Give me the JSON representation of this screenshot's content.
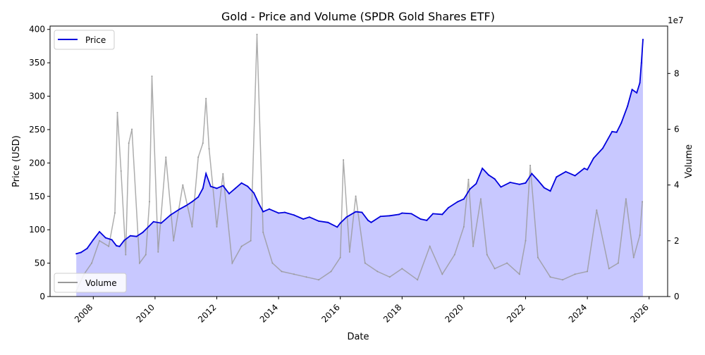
{
  "chart_data": {
    "type": "line",
    "title": "Gold - Price and Volume (SPDR Gold Shares ETF)",
    "xlabel": "Date",
    "ylabel": "Price (USD)",
    "y2label": "Volume",
    "y2_offset_text": "1e7",
    "xlim": [
      2006.6,
      2026.6
    ],
    "ylim": [
      0,
      405
    ],
    "y2lim": [
      0,
      97000000
    ],
    "x_ticks": [
      2008,
      2010,
      2012,
      2014,
      2016,
      2018,
      2020,
      2022,
      2024,
      2026
    ],
    "y_ticks": [
      0,
      50,
      100,
      150,
      200,
      250,
      300,
      350,
      400
    ],
    "y2_ticks": [
      0,
      2,
      4,
      6,
      8
    ],
    "legend_price": {
      "label": "Price",
      "placement": "upper left"
    },
    "legend_volume": {
      "label": "Volume",
      "placement": "lower left"
    },
    "colors": {
      "price": "#0000dd",
      "fill": "#c8c8ff",
      "volume": "#999999"
    },
    "price_series": {
      "name": "Price",
      "x": [
        2007.45,
        2007.6,
        2007.8,
        2008.0,
        2008.2,
        2008.4,
        2008.6,
        2008.75,
        2008.85,
        2009.0,
        2009.2,
        2009.4,
        2009.6,
        2009.8,
        2009.95,
        2010.2,
        2010.5,
        2010.8,
        2011.0,
        2011.2,
        2011.4,
        2011.55,
        2011.65,
        2011.8,
        2012.0,
        2012.2,
        2012.4,
        2012.6,
        2012.8,
        2013.0,
        2013.2,
        2013.35,
        2013.5,
        2013.7,
        2014.0,
        2014.2,
        2014.5,
        2014.8,
        2015.0,
        2015.3,
        2015.6,
        2015.9,
        2016.0,
        2016.2,
        2016.5,
        2016.7,
        2016.9,
        2017.0,
        2017.3,
        2017.6,
        2017.9,
        2018.0,
        2018.3,
        2018.6,
        2018.8,
        2019.0,
        2019.3,
        2019.5,
        2019.8,
        2020.0,
        2020.2,
        2020.4,
        2020.6,
        2020.8,
        2021.0,
        2021.2,
        2021.5,
        2021.8,
        2022.0,
        2022.2,
        2022.4,
        2022.6,
        2022.8,
        2023.0,
        2023.3,
        2023.6,
        2023.9,
        2024.0,
        2024.2,
        2024.5,
        2024.8,
        2024.95,
        2025.1,
        2025.3,
        2025.45,
        2025.6,
        2025.7,
        2025.75,
        2025.8
      ],
      "y": [
        64,
        66,
        72,
        85,
        97,
        88,
        85,
        76,
        75,
        84,
        91,
        90,
        96,
        105,
        112,
        110,
        122,
        131,
        136,
        142,
        149,
        162,
        184,
        165,
        162,
        166,
        154,
        162,
        170,
        165,
        155,
        140,
        127,
        131,
        125,
        126,
        122,
        116,
        119,
        113,
        111,
        104,
        110,
        119,
        127,
        126,
        114,
        111,
        120,
        121,
        123,
        125,
        124,
        116,
        114,
        124,
        123,
        133,
        142,
        146,
        161,
        169,
        192,
        182,
        176,
        164,
        171,
        168,
        170,
        184,
        174,
        163,
        158,
        179,
        187,
        181,
        192,
        190,
        207,
        222,
        247,
        246,
        260,
        285,
        310,
        305,
        320,
        350,
        385
      ]
    },
    "volume_series": {
      "name": "Volume",
      "x": [
        2007.45,
        2007.7,
        2007.95,
        2008.2,
        2008.5,
        2008.7,
        2008.78,
        2008.9,
        2009.05,
        2009.15,
        2009.25,
        2009.5,
        2009.7,
        2009.82,
        2009.9,
        2010.1,
        2010.35,
        2010.6,
        2010.9,
        2011.2,
        2011.4,
        2011.55,
        2011.65,
        2011.75,
        2012.0,
        2012.2,
        2012.5,
        2012.8,
        2013.1,
        2013.3,
        2013.5,
        2013.8,
        2014.1,
        2014.5,
        2014.9,
        2015.3,
        2015.7,
        2016.0,
        2016.1,
        2016.3,
        2016.5,
        2016.8,
        2017.2,
        2017.6,
        2018.0,
        2018.5,
        2018.9,
        2019.3,
        2019.7,
        2020.0,
        2020.15,
        2020.3,
        2020.55,
        2020.75,
        2021.0,
        2021.4,
        2021.8,
        2022.0,
        2022.15,
        2022.4,
        2022.8,
        2023.2,
        2023.6,
        2024.0,
        2024.3,
        2024.7,
        2025.0,
        2025.25,
        2025.5,
        2025.7,
        2025.78
      ],
      "y": [
        2000000,
        8000000,
        12000000,
        20000000,
        18000000,
        30000000,
        66000000,
        45000000,
        15000000,
        55000000,
        60000000,
        12000000,
        15000000,
        34000000,
        79000000,
        16000000,
        50000000,
        20000000,
        40000000,
        25000000,
        50000000,
        55000000,
        71000000,
        53000000,
        25000000,
        44000000,
        12000000,
        18000000,
        20000000,
        94000000,
        23000000,
        12000000,
        9000000,
        8000000,
        7000000,
        6000000,
        9000000,
        14000000,
        49000000,
        16000000,
        36000000,
        12000000,
        9000000,
        7000000,
        10000000,
        6000000,
        18000000,
        8000000,
        15000000,
        25000000,
        42000000,
        18000000,
        35000000,
        15000000,
        10000000,
        12000000,
        8000000,
        20000000,
        47000000,
        14000000,
        7000000,
        6000000,
        8000000,
        9000000,
        31000000,
        10000000,
        12000000,
        35000000,
        14000000,
        22000000,
        34000000
      ]
    }
  }
}
